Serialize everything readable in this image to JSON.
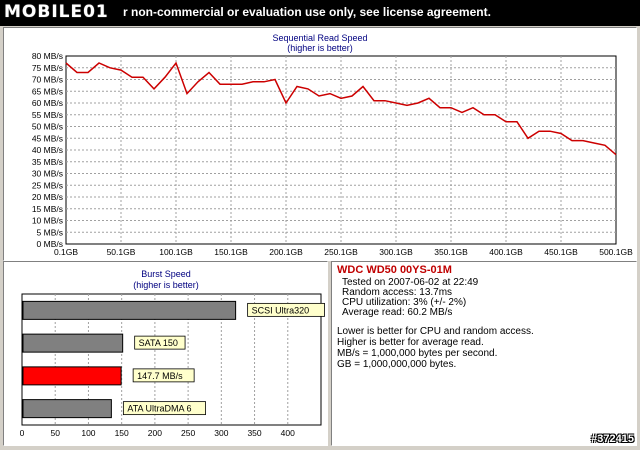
{
  "header": {
    "logo_text": "MOBILE01",
    "notice": "r non-commercial or evaluation use only, see license agreement."
  },
  "sequential_chart": {
    "title": "Sequential Read Speed",
    "subtitle": "(higher is better)"
  },
  "burst_chart": {
    "title": "Burst Speed",
    "subtitle": "(higher is better)"
  },
  "info": {
    "drive_name": "WDC WD50 00YS-01M",
    "tested_on": "Tested on 2007-06-02 at 22:49",
    "random_access": "Random access: 13.7ms",
    "cpu_utilization": "CPU utilization: 3% (+/- 2%)",
    "average_read": "Average read: 60.2 MB/s",
    "note1": "Lower is better for CPU and random access.",
    "note2": "Higher is better for average read.",
    "note3": "MB/s = 1,000,000 bytes per second.",
    "note4": "GB = 1,000,000,000 bytes."
  },
  "watermark": "#372415",
  "colors": {
    "line": "#cc0000",
    "highlight_bar": "#ff0000",
    "normal_bar": "#808080",
    "label_bg": "#ffffcc"
  },
  "chart_data": [
    {
      "type": "line",
      "title": "Sequential Read Speed",
      "subtitle": "(higher is better)",
      "x": [
        0,
        10,
        20,
        30,
        40,
        50,
        60,
        70,
        80,
        90,
        100,
        110,
        120,
        130,
        140,
        150,
        160,
        170,
        180,
        190,
        200,
        210,
        220,
        230,
        240,
        250,
        260,
        270,
        280,
        290,
        300,
        310,
        320,
        330,
        340,
        350,
        360,
        370,
        380,
        390,
        400,
        410,
        420,
        430,
        440,
        450,
        460,
        470,
        480,
        490,
        500
      ],
      "values": [
        77,
        73,
        73,
        77,
        75,
        74,
        71,
        71,
        66,
        71,
        77,
        64,
        69,
        73,
        68,
        68,
        68,
        69,
        69,
        70,
        60,
        67,
        66,
        63,
        64,
        62,
        63,
        67,
        61,
        61,
        60,
        59,
        60,
        62,
        58,
        58,
        56,
        58,
        55,
        55,
        52,
        52,
        45,
        48,
        48,
        47,
        44,
        44,
        43,
        42,
        38
      ],
      "xlim": [
        0.1,
        500.1
      ],
      "ylim": [
        0,
        80
      ],
      "xticks": [
        "0.1GB",
        "50.1GB",
        "100.1GB",
        "150.1GB",
        "200.1GB",
        "250.1GB",
        "300.1GB",
        "350.1GB",
        "400.1GB",
        "450.1GB",
        "500.1GB"
      ],
      "yticks": [
        "0 MB/s",
        "5 MB/s",
        "10 MB/s",
        "15 MB/s",
        "20 MB/s",
        "25 MB/s",
        "30 MB/s",
        "35 MB/s",
        "40 MB/s",
        "45 MB/s",
        "50 MB/s",
        "55 MB/s",
        "60 MB/s",
        "65 MB/s",
        "70 MB/s",
        "75 MB/s",
        "80 MB/s"
      ],
      "grid": true
    },
    {
      "type": "bar",
      "title": "Burst Speed",
      "subtitle": "(higher is better)",
      "categories": [
        "SCSI Ultra320",
        "SATA 150",
        "147.7 MB/s",
        "ATA UltraDMA 6"
      ],
      "values": [
        320,
        150,
        147.7,
        133
      ],
      "highlight_index": 2,
      "xlim": [
        0,
        450
      ],
      "xticks": [
        "0",
        "50",
        "100",
        "150",
        "200",
        "250",
        "300",
        "350",
        "400"
      ],
      "grid": true
    }
  ]
}
